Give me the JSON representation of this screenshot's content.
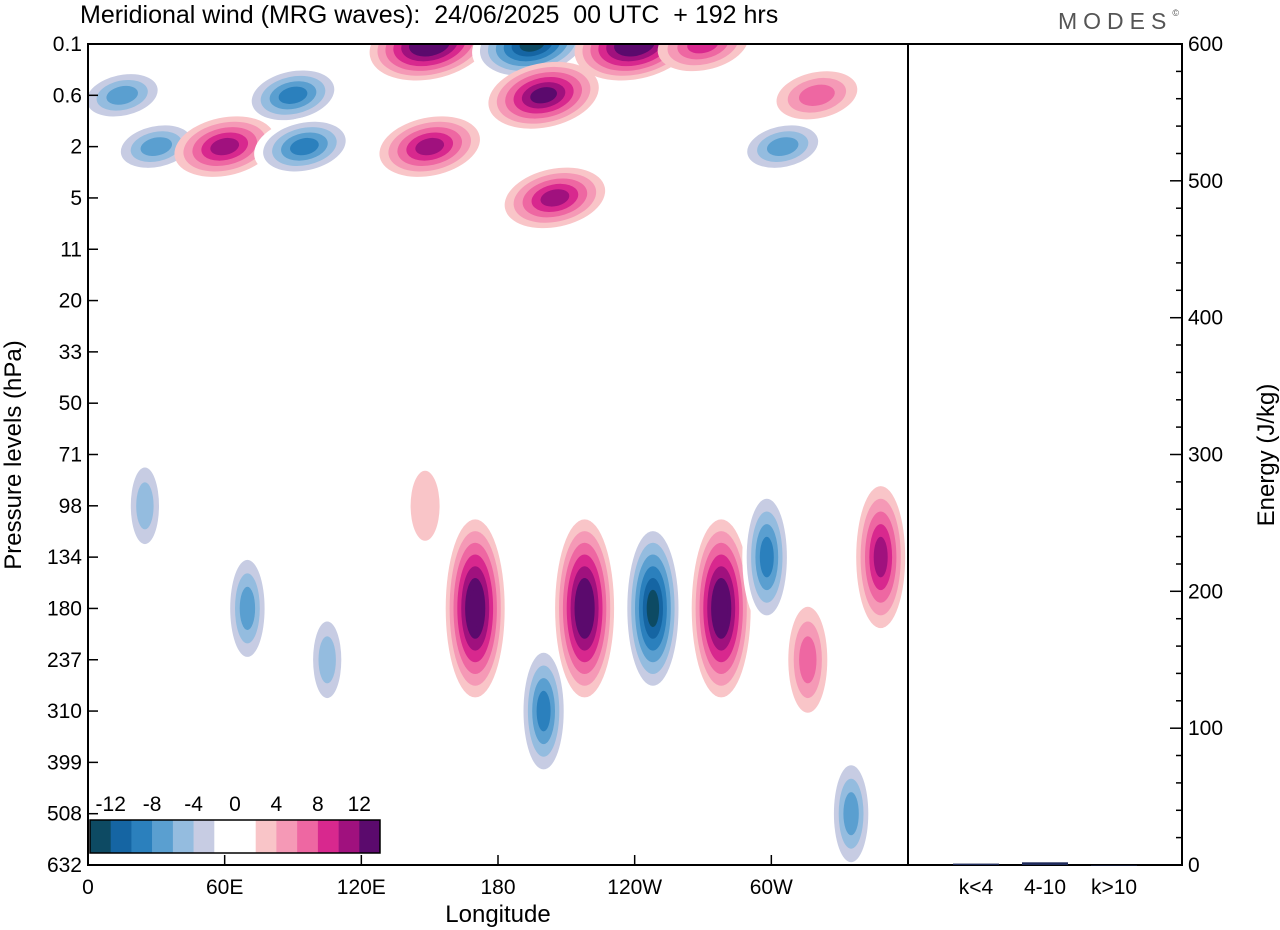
{
  "title": "Meridional wind (MRG waves):  24/06/2025  00 UTC  + 192 hrs",
  "logo": {
    "text": "MODES",
    "mark": "©"
  },
  "colors": {
    "contour_levels": [
      -14,
      -12,
      -10,
      -8,
      -6,
      -4,
      -2,
      0,
      2,
      4,
      6,
      8,
      10,
      12,
      14
    ],
    "palette": [
      "#0d4a63",
      "#1565a3",
      "#2b80bd",
      "#5a9fd0",
      "#94bcdf",
      "#c7cce3",
      "#ffffff",
      "#ffffff",
      "#f9c5c8",
      "#f599b6",
      "#ee67a2",
      "#d8288e",
      "#a0117e",
      "#5b0a6d"
    ]
  },
  "chart_data": [
    {
      "type": "heatmap",
      "title": "Meridional wind (MRG waves):  24/06/2025  00 UTC  + 192 hrs",
      "xlabel": "Longitude",
      "ylabel": "Pressure levels (hPa)",
      "x_ticks": [
        "0",
        "60E",
        "120E",
        "180",
        "120W",
        "60W"
      ],
      "y_ticks": [
        "0.1",
        "0.6",
        "2",
        "5",
        "11",
        "20",
        "33",
        "50",
        "71",
        "98",
        "134",
        "180",
        "237",
        "310",
        "399",
        "508",
        "632"
      ],
      "colorbar": {
        "labels": [
          "-12",
          "-8",
          "-4",
          "0",
          "4",
          "8",
          "12"
        ]
      },
      "features": [
        {
          "lon": 150,
          "level": "0.1",
          "value": 14
        },
        {
          "lon": 195,
          "level": "0.1",
          "value": -14
        },
        {
          "lon": 240,
          "level": "0.1",
          "value": 14
        },
        {
          "lon": 200,
          "level": "0.6",
          "value": 12
        },
        {
          "lon": 270,
          "level": "0.1",
          "value": 8
        },
        {
          "lon": 15,
          "level": "0.6",
          "value": -8
        },
        {
          "lon": 90,
          "level": "0.6",
          "value": -10
        },
        {
          "lon": 30,
          "level": "2",
          "value": -8
        },
        {
          "lon": 60,
          "level": "2",
          "value": 10
        },
        {
          "lon": 95,
          "level": "2",
          "value": -10
        },
        {
          "lon": 150,
          "level": "2",
          "value": 10
        },
        {
          "lon": 205,
          "level": "5",
          "value": 10
        },
        {
          "lon": 305,
          "level": "2",
          "value": -8
        },
        {
          "lon": 320,
          "level": "0.6",
          "value": 6
        },
        {
          "lon": 25,
          "level": "98",
          "value": -6
        },
        {
          "lon": 70,
          "level": "180",
          "value": -8
        },
        {
          "lon": 105,
          "level": "237",
          "value": -6
        },
        {
          "lon": 170,
          "level": "180",
          "value": 14
        },
        {
          "lon": 200,
          "level": "310",
          "value": -10
        },
        {
          "lon": 218,
          "level": "180",
          "value": 14
        },
        {
          "lon": 248,
          "level": "180",
          "value": -14
        },
        {
          "lon": 278,
          "level": "180",
          "value": 14
        },
        {
          "lon": 298,
          "level": "134",
          "value": -10
        },
        {
          "lon": 316,
          "level": "237",
          "value": 6
        },
        {
          "lon": 348,
          "level": "134",
          "value": 10
        },
        {
          "lon": 335,
          "level": "508",
          "value": -8
        },
        {
          "lon": 148,
          "level": "98",
          "value": 2
        }
      ]
    },
    {
      "type": "bar",
      "ylabel": "Energy (J/kg)",
      "categories": [
        "k<4",
        "4-10",
        "k>10"
      ],
      "values": [
        1,
        2,
        0
      ],
      "ylim": [
        0,
        600
      ],
      "y_ticks": [
        "0",
        "100",
        "200",
        "300",
        "400",
        "500",
        "600"
      ]
    }
  ]
}
